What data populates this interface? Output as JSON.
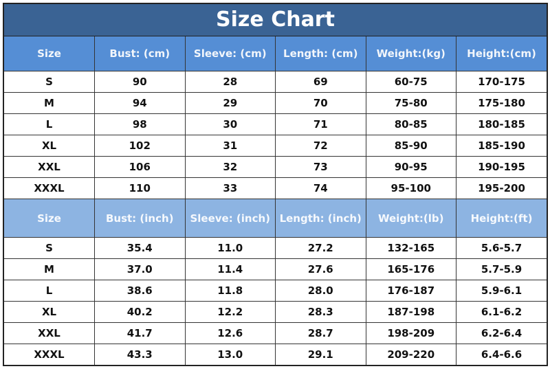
{
  "title": "Size Chart",
  "colors": {
    "title_bg": "#3a6394",
    "header_cm_bg": "#558ed5",
    "header_inch_bg": "#8db4e2"
  },
  "metric": {
    "headers": [
      "Size",
      "Bust: (cm)",
      "Sleeve: (cm)",
      "Length: (cm)",
      "Weight:(kg)",
      "Height:(cm)"
    ],
    "rows": [
      [
        "S",
        "90",
        "28",
        "69",
        "60-75",
        "170-175"
      ],
      [
        "M",
        "94",
        "29",
        "70",
        "75-80",
        "175-180"
      ],
      [
        "L",
        "98",
        "30",
        "71",
        "80-85",
        "180-185"
      ],
      [
        "XL",
        "102",
        "31",
        "72",
        "85-90",
        "185-190"
      ],
      [
        "XXL",
        "106",
        "32",
        "73",
        "90-95",
        "190-195"
      ],
      [
        "XXXL",
        "110",
        "33",
        "74",
        "95-100",
        "195-200"
      ]
    ]
  },
  "imperial": {
    "headers": [
      "Size",
      "Bust: (inch)",
      "Sleeve: (inch)",
      "Length: (inch)",
      "Weight:(lb)",
      "Height:(ft)"
    ],
    "rows": [
      [
        "S",
        "35.4",
        "11.0",
        "27.2",
        "132-165",
        "5.6-5.7"
      ],
      [
        "M",
        "37.0",
        "11.4",
        "27.6",
        "165-176",
        "5.7-5.9"
      ],
      [
        "L",
        "38.6",
        "11.8",
        "28.0",
        "176-187",
        "5.9-6.1"
      ],
      [
        "XL",
        "40.2",
        "12.2",
        "28.3",
        "187-198",
        "6.1-6.2"
      ],
      [
        "XXL",
        "41.7",
        "12.6",
        "28.7",
        "198-209",
        "6.2-6.4"
      ],
      [
        "XXXL",
        "43.3",
        "13.0",
        "29.1",
        "209-220",
        "6.4-6.6"
      ]
    ]
  }
}
